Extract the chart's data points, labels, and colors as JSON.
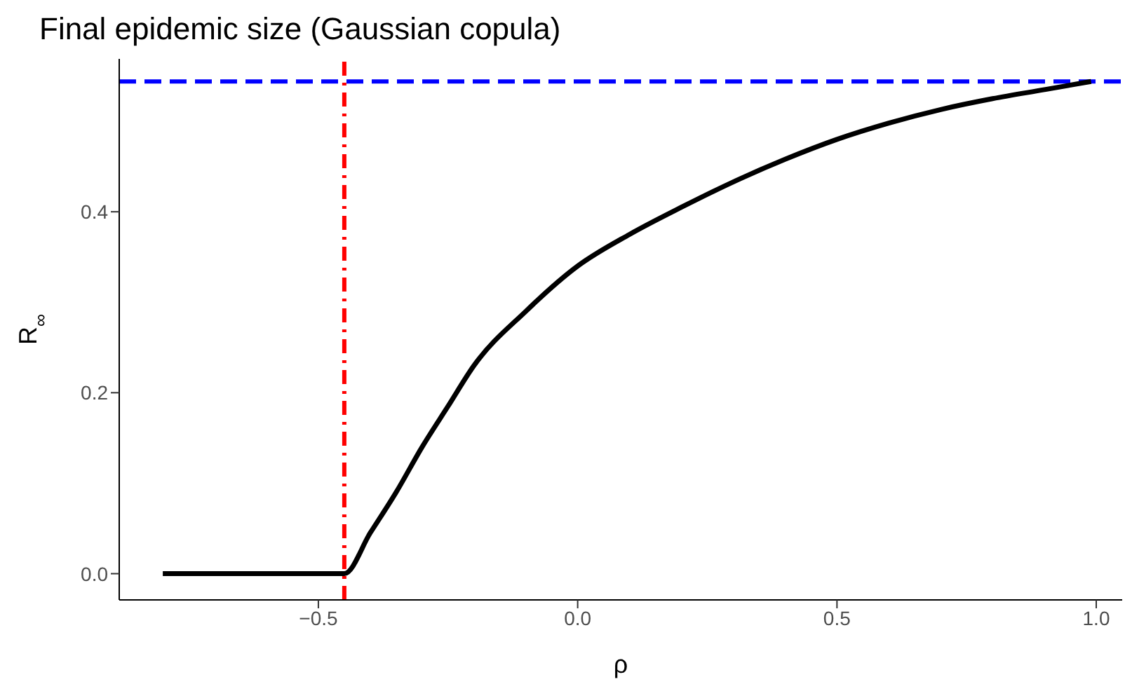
{
  "chart_data": {
    "type": "line",
    "title": "Final epidemic size (Gaussian copula)",
    "xlabel": "ρ",
    "ylabel": "R$_{∞}$",
    "x": [
      -0.8,
      -0.45,
      -0.4,
      -0.35,
      -0.3,
      -0.25,
      -0.2,
      -0.1,
      0,
      0.1,
      0.2,
      0.3,
      0.4,
      0.5,
      0.6,
      0.7,
      0.8,
      0.9,
      0.99
    ],
    "series": [
      {
        "color": "#000000",
        "values": [
          0,
          0,
          0.045,
          0.09,
          0.14,
          0.185,
          0.23,
          0.29,
          0.34,
          0.375,
          0.405,
          0.433,
          0.458,
          0.48,
          0.498,
          0.513,
          0.525,
          0.535,
          0.544
        ]
      }
    ],
    "xlim": [
      -0.884,
      1.05
    ],
    "xticks": [
      {
        "value": -0.5,
        "label": "−0.5"
      },
      {
        "value": 0,
        "label": "0.0"
      },
      {
        "value": 0.5,
        "label": "0.5"
      },
      {
        "value": 1,
        "label": "1.0"
      }
    ],
    "ylim": [
      -0.029,
      0.569
    ],
    "yticks": [
      {
        "value": 0,
        "label": "0.0"
      },
      {
        "value": 0.2,
        "label": "0.2"
      },
      {
        "value": 0.4,
        "label": "0.4"
      }
    ],
    "ref_lines": [
      {
        "axis": "y",
        "value": 0.544,
        "color": "#0000ff",
        "line_style": "dashed"
      },
      {
        "axis": "x",
        "value": -0.45,
        "color": "#ff0000",
        "line_style": "dashdot"
      }
    ],
    "grid": false,
    "legend": false,
    "marker": "none",
    "line_style": "solid"
  }
}
